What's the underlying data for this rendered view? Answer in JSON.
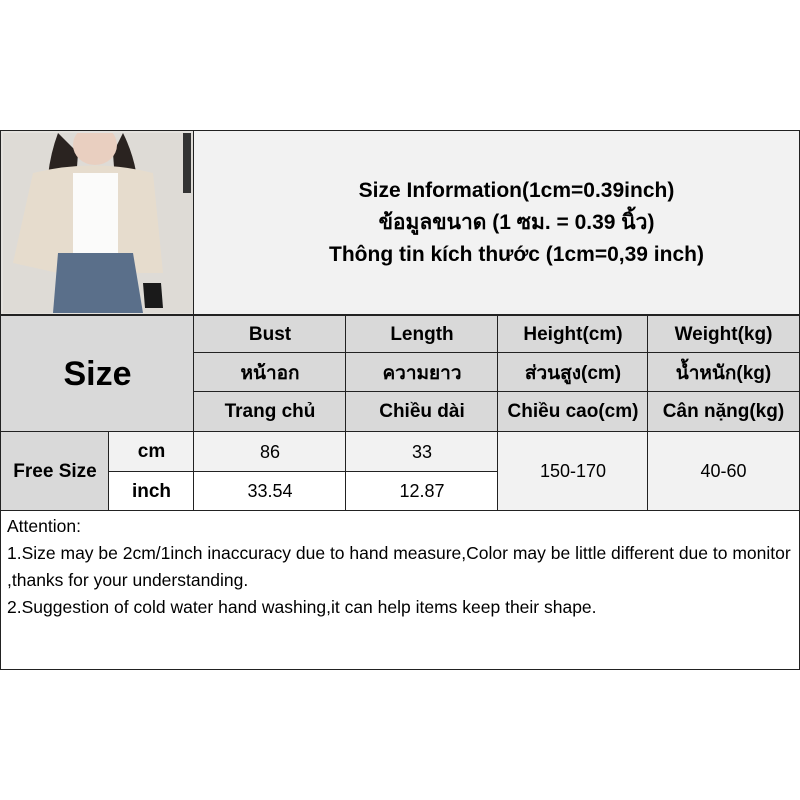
{
  "info": {
    "line1": "Size Information(1cm=0.39inch)",
    "line2": "ข้อมูลขนาด (1 ซม. = 0.39 นิ้ว)",
    "line3": "Thông tin kích thước (1cm=0,39 inch)"
  },
  "size_label": "Size",
  "columns": [
    {
      "en": "Bust",
      "th": "หน้าอก",
      "vi": "Trang chủ"
    },
    {
      "en": "Length",
      "th": "ความยาว",
      "vi": "Chiều dài"
    },
    {
      "en": "Height(cm)",
      "th": "ส่วนสูง(cm)",
      "vi": "Chiều cao(cm)"
    },
    {
      "en": "Weight(kg)",
      "th": "น้ำหนัก(kg)",
      "vi": "Cân nặng(kg)"
    }
  ],
  "row": {
    "size": "Free Size",
    "cm": {
      "unit": "cm",
      "bust": "86",
      "length": "33"
    },
    "inch": {
      "unit": "inch",
      "bust": "33.54",
      "length": "12.87"
    },
    "height": "150-170",
    "weight": "40-60"
  },
  "attention": {
    "title": "Attention:",
    "line1": "1.Size may be 2cm/1inch inaccuracy due to hand measure,Color may be little different due to monitor ,thanks for your understanding.",
    "line2": "2.Suggestion of cold water hand washing,it can help items keep their shape."
  }
}
